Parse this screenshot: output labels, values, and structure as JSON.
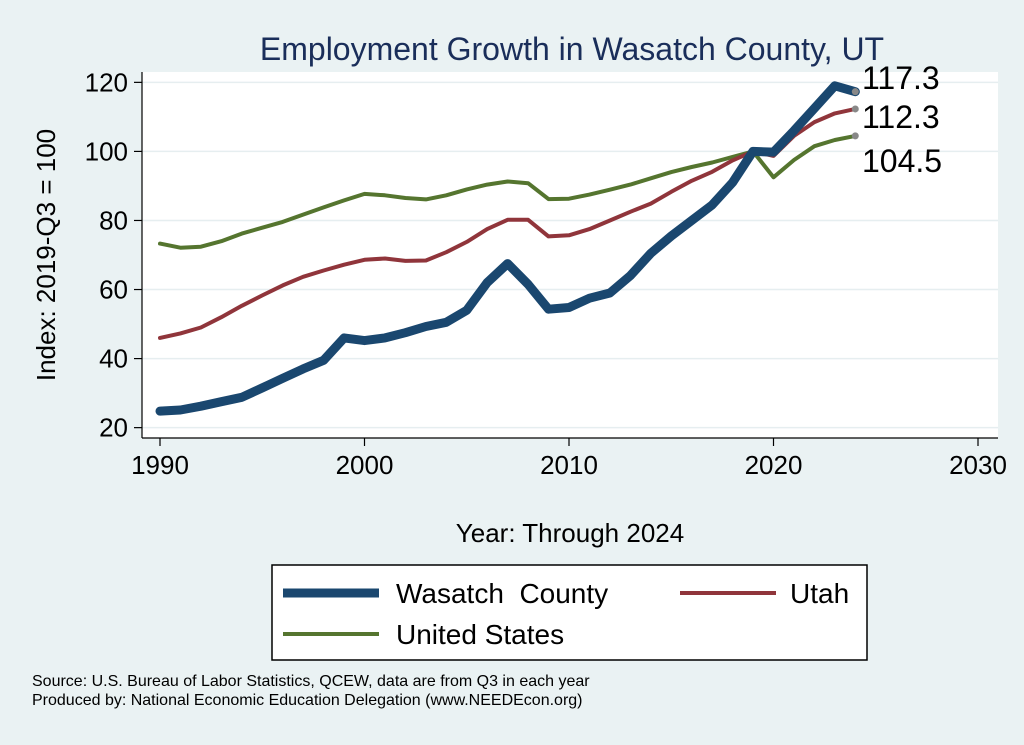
{
  "chart_data": {
    "type": "line",
    "title": "Employment Growth in Wasatch County, UT",
    "xlabel": "Year: Through 2024",
    "ylabel": "Index: 2019-Q3 = 100",
    "xlim": [
      1990,
      2030
    ],
    "ylim": [
      17,
      123
    ],
    "xticks": [
      1990,
      2000,
      2010,
      2020,
      2030
    ],
    "yticks": [
      20,
      40,
      60,
      80,
      100,
      120
    ],
    "grid": true,
    "legend_position": "bottom",
    "x": [
      1990,
      1991,
      1992,
      1993,
      1994,
      1995,
      1996,
      1997,
      1998,
      1999,
      2000,
      2001,
      2002,
      2003,
      2004,
      2005,
      2006,
      2007,
      2008,
      2009,
      2010,
      2011,
      2012,
      2013,
      2014,
      2015,
      2016,
      2017,
      2018,
      2019,
      2020,
      2021,
      2022,
      2023,
      2024
    ],
    "series": [
      {
        "name": "Wasatch  County",
        "color": "#1a476f",
        "width": 9,
        "values": [
          24.8,
          25.1,
          26.2,
          27.5,
          28.8,
          31.5,
          34.3,
          37.0,
          39.5,
          46.0,
          45.2,
          46.0,
          47.5,
          49.3,
          50.5,
          54.0,
          62.0,
          67.5,
          61.5,
          54.3,
          54.8,
          57.5,
          59.0,
          64.0,
          70.5,
          75.5,
          80.0,
          84.5,
          91.0,
          100.0,
          99.8,
          106.0,
          112.5,
          119.0,
          117.3
        ],
        "end_label": "117.3"
      },
      {
        "name": "Utah",
        "color": "#90353b",
        "width": 4,
        "values": [
          46.0,
          47.3,
          49.0,
          52.0,
          55.3,
          58.3,
          61.2,
          63.7,
          65.5,
          67.2,
          68.6,
          69.0,
          68.3,
          68.4,
          70.8,
          73.8,
          77.5,
          80.2,
          80.2,
          75.4,
          75.7,
          77.5,
          80.0,
          82.5,
          84.9,
          88.3,
          91.5,
          94.1,
          97.4,
          100.0,
          98.7,
          104.5,
          108.5,
          111.0,
          112.3
        ],
        "end_label": "112.3"
      },
      {
        "name": "United States",
        "color": "#55752f",
        "width": 4,
        "values": [
          73.3,
          72.1,
          72.4,
          74.0,
          76.2,
          77.9,
          79.6,
          81.7,
          83.8,
          85.8,
          87.7,
          87.3,
          86.5,
          86.1,
          87.3,
          89.0,
          90.4,
          91.3,
          90.8,
          86.2,
          86.3,
          87.5,
          88.9,
          90.4,
          92.2,
          94.0,
          95.5,
          96.8,
          98.4,
          100.0,
          92.5,
          97.5,
          101.5,
          103.3,
          104.5
        ],
        "end_label": "104.5"
      }
    ],
    "legend": [
      {
        "label": "Wasatch  County",
        "color": "#1a476f",
        "width": 9
      },
      {
        "label": "Utah",
        "color": "#90353b",
        "width": 4
      },
      {
        "label": "United States",
        "color": "#55752f",
        "width": 4
      }
    ]
  },
  "source_line": "Source: U.S. Bureau of Labor Statistics, QCEW, data are from Q3 in each year",
  "produced_line": "Produced by: National Economic Education Delegation (www.NEEDEcon.org)"
}
